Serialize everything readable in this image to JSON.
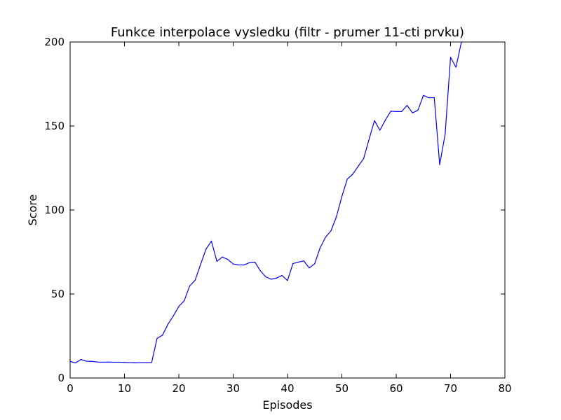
{
  "chart_data": {
    "type": "line",
    "title": "Funkce interpolace vysledku  (filtr - prumer 11-cti prvku)",
    "xlabel": "Episodes",
    "ylabel": "Score",
    "xlim": [
      0,
      80
    ],
    "ylim": [
      0,
      200
    ],
    "xticks": [
      0,
      10,
      20,
      30,
      40,
      50,
      60,
      70,
      80
    ],
    "yticks": [
      0,
      50,
      100,
      150,
      200
    ],
    "xtick_labels": [
      "0",
      "10",
      "20",
      "30",
      "40",
      "50",
      "60",
      "70",
      "80"
    ],
    "ytick_labels": [
      "0",
      "50",
      "100",
      "150",
      "200"
    ],
    "grid": false,
    "series": [
      {
        "color": "#0000ff",
        "x": [
          0,
          1,
          2,
          3,
          4,
          5,
          6,
          7,
          8,
          9,
          10,
          11,
          12,
          13,
          14,
          15,
          16,
          17,
          18,
          19,
          20,
          21,
          22,
          23,
          24,
          25,
          26,
          27,
          28,
          29,
          30,
          31,
          32,
          33,
          34,
          35,
          36,
          37,
          38,
          39,
          40,
          41,
          42,
          43,
          44,
          45,
          46,
          47,
          48,
          49,
          50,
          51,
          52,
          53,
          54,
          55,
          56,
          57,
          58,
          59,
          60,
          61,
          62,
          63,
          64,
          65,
          66,
          67,
          68,
          69,
          70,
          71,
          72
        ],
        "y": [
          9.9,
          9.0,
          11.0,
          10.0,
          9.9,
          9.5,
          9.4,
          9.5,
          9.4,
          9.4,
          9.3,
          9.2,
          9.1,
          9.2,
          9.2,
          9.2,
          23.6,
          25.5,
          32.0,
          37.0,
          42.6,
          46.0,
          54.8,
          58.2,
          67.6,
          76.7,
          81.5,
          69.4,
          72.0,
          70.6,
          67.9,
          67.3,
          67.3,
          68.6,
          69.0,
          63.8,
          60.2,
          58.8,
          59.5,
          61.0,
          58.0,
          68.1,
          69.0,
          69.7,
          65.5,
          68.0,
          77.5,
          83.8,
          87.6,
          96.0,
          108.0,
          118.4,
          121.3,
          126.0,
          130.5,
          142.0,
          153.2,
          147.5,
          153.5,
          158.8,
          158.6,
          158.6,
          162.3,
          157.8,
          159.4,
          168.2,
          166.8,
          166.9,
          127.0,
          145.0,
          190.9,
          185.0,
          200.0
        ]
      }
    ]
  }
}
